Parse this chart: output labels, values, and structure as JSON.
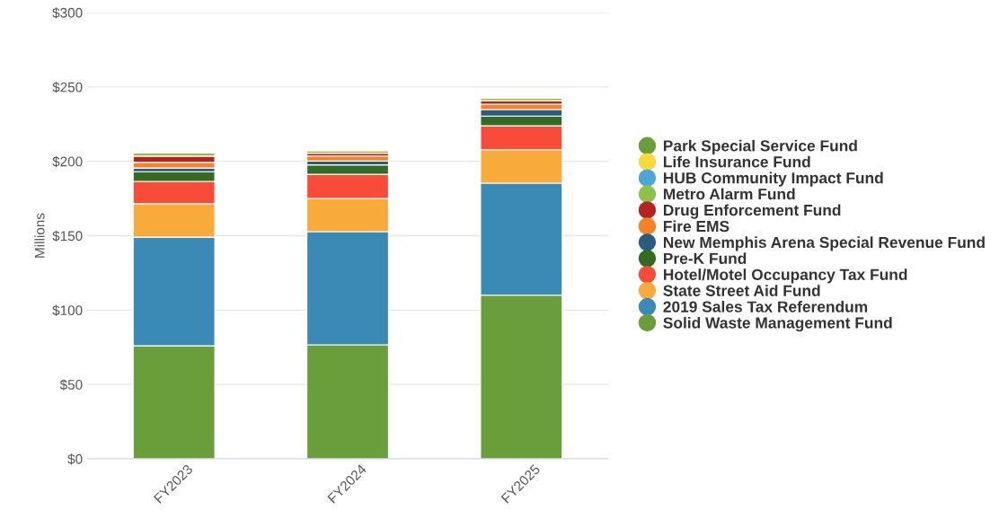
{
  "chart_data": {
    "type": "bar",
    "stacked": true,
    "ylabel": "Millions",
    "categories": [
      "FY2023",
      "FY2024",
      "FY2025"
    ],
    "ylim": [
      0,
      300
    ],
    "yticks": [
      {
        "value": 0,
        "label": "$0"
      },
      {
        "value": 50,
        "label": "$50"
      },
      {
        "value": 100,
        "label": "$100"
      },
      {
        "value": 150,
        "label": "$150"
      },
      {
        "value": 200,
        "label": "$200"
      },
      {
        "value": 250,
        "label": "$250"
      },
      {
        "value": 300,
        "label": "$300"
      }
    ],
    "grid": "y",
    "legend": "right",
    "marker": "circle",
    "series": [
      {
        "name": "Solid Waste Management Fund",
        "color": "#6a9e3a",
        "values": [
          76,
          76.7,
          110
        ]
      },
      {
        "name": "2019 Sales Tax Referendum",
        "color": "#3b8ab5",
        "values": [
          73,
          76,
          75.3
        ]
      },
      {
        "name": "State Street Aid Fund",
        "color": "#f8ab3a",
        "values": [
          22.5,
          22.3,
          22.5
        ]
      },
      {
        "name": "Hotel/Motel Occupancy Tax Fund",
        "color": "#f94b3a",
        "values": [
          15,
          16.3,
          16.1
        ]
      },
      {
        "name": "Pre-K Fund",
        "color": "#336b22",
        "values": [
          6.5,
          6.3,
          6.5
        ]
      },
      {
        "name": "New Memphis Arena Special Revenue Fund",
        "color": "#2b5a82",
        "values": [
          2.5,
          2.6,
          4.4
        ]
      },
      {
        "name": "Fire EMS",
        "color": "#f58225",
        "values": [
          3.8,
          3.4,
          3.6
        ]
      },
      {
        "name": "Drug Enforcement Fund",
        "color": "#b52420",
        "values": [
          4.2,
          1.8,
          2.4
        ]
      },
      {
        "name": "Metro Alarm Fund",
        "color": "#8bc34a",
        "values": [
          2,
          1.8,
          1.8
        ]
      },
      {
        "name": "HUB Community Impact Fund",
        "color": "#4aa8d8",
        "values": [
          null,
          null,
          null
        ]
      },
      {
        "name": "Life Insurance Fund",
        "color": "#fdd83a",
        "values": [
          null,
          null,
          null
        ]
      },
      {
        "name": "Park Special Service Fund",
        "color": "#6a9e3a",
        "values": [
          null,
          null,
          null
        ]
      }
    ]
  }
}
